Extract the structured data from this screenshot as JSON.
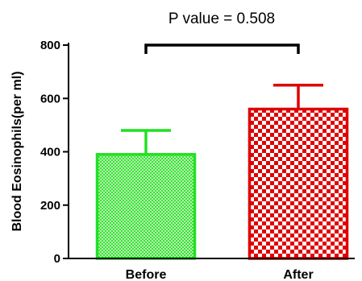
{
  "chart_data": {
    "type": "bar",
    "categories": [
      "Before",
      "After"
    ],
    "values": [
      390,
      560
    ],
    "errors": [
      90,
      90
    ],
    "ylabel": "Blood Eosinophils(per ml)",
    "xlabel": "",
    "ylim": [
      0,
      800
    ],
    "yticks": [
      "0",
      "200",
      "400",
      "600",
      "800"
    ],
    "annotation": "P value = 0.508",
    "grid": false,
    "colors": [
      "#22e022",
      "#e00000"
    ],
    "patterns": [
      "fine-checker",
      "coarse-checker"
    ]
  }
}
